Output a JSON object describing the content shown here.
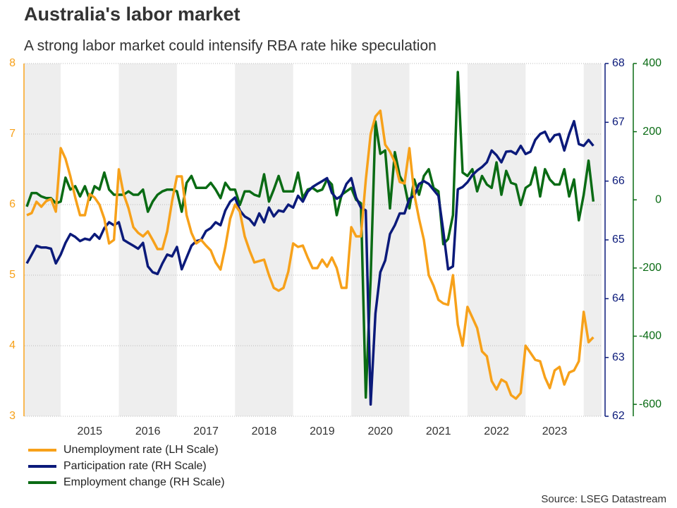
{
  "chart_data": {
    "type": "line",
    "title": "Australia's labor market",
    "subtitle": "A strong labor market could intensify RBA rate hike speculation",
    "source": "Source: LSEG Datastream",
    "categories": [
      null,
      null,
      null,
      null,
      null,
      null,
      null,
      null,
      null,
      null,
      null,
      null,
      null,
      "2015",
      null,
      null,
      null,
      null,
      null,
      null,
      null,
      null,
      null,
      null,
      null,
      "2016",
      null,
      null,
      null,
      null,
      null,
      null,
      null,
      null,
      null,
      null,
      null,
      "2017",
      null,
      null,
      null,
      null,
      null,
      null,
      null,
      null,
      null,
      null,
      null,
      "2018",
      null,
      null,
      null,
      null,
      null,
      null,
      null,
      null,
      null,
      null,
      null,
      "2019",
      null,
      null,
      null,
      null,
      null,
      null,
      null,
      null,
      null,
      null,
      null,
      "2020",
      null,
      null,
      null,
      null,
      null,
      null,
      null,
      null,
      null,
      null,
      null,
      "2021",
      null,
      null,
      null,
      null,
      null,
      null,
      null,
      null,
      null,
      null,
      null,
      "2022",
      null,
      null,
      null,
      null,
      null,
      null,
      null,
      null,
      null,
      null,
      null,
      "2023",
      null,
      null,
      null,
      null,
      null,
      null,
      null,
      null
    ],
    "ylim": [
      3,
      8
    ],
    "yticks": [
      3,
      4,
      5,
      6,
      7,
      8
    ],
    "y2lim": [
      62,
      68
    ],
    "y2ticks": [
      62,
      63,
      64,
      65,
      66,
      67,
      68
    ],
    "y3lim": [
      -635,
      400
    ],
    "y3ticks": [
      -600,
      -400,
      -200,
      0,
      200,
      400
    ],
    "grid": true,
    "legend": "bottom-left",
    "series": [
      {
        "name": "Unemployment rate (LH Scale)",
        "color": "#f7a11a",
        "axis": "y",
        "values": [
          5.85,
          5.88,
          6.04,
          5.97,
          6.05,
          6.08,
          5.9,
          6.8,
          6.65,
          6.4,
          6.1,
          5.85,
          5.85,
          6.15,
          6.1,
          6.0,
          5.8,
          5.45,
          5.5,
          6.5,
          6.15,
          5.95,
          5.68,
          5.6,
          5.55,
          5.62,
          5.5,
          5.37,
          5.37,
          5.62,
          6.05,
          6.4,
          6.4,
          5.85,
          5.6,
          5.45,
          5.5,
          5.42,
          5.35,
          5.18,
          5.08,
          5.4,
          5.8,
          6.0,
          5.9,
          5.55,
          5.35,
          5.18,
          5.2,
          5.22,
          5.0,
          4.82,
          4.78,
          4.82,
          5.05,
          5.45,
          5.4,
          5.42,
          5.25,
          5.1,
          5.1,
          5.22,
          5.12,
          5.25,
          5.1,
          4.82,
          4.82,
          5.68,
          5.55,
          5.55,
          6.35,
          7.0,
          7.25,
          7.33,
          6.85,
          6.75,
          6.6,
          6.32,
          6.3,
          6.8,
          6.15,
          5.8,
          5.5,
          5.0,
          4.85,
          4.65,
          4.6,
          4.58,
          5.0,
          4.3,
          4.0,
          4.55,
          4.4,
          4.25,
          3.92,
          3.85,
          3.5,
          3.38,
          3.52,
          3.48,
          3.3,
          3.25,
          3.33,
          4.0,
          3.9,
          3.8,
          3.78,
          3.55,
          3.4,
          3.65,
          3.7,
          3.45,
          3.62,
          3.65,
          3.78,
          4.48,
          4.05,
          4.12
        ]
      },
      {
        "name": "Participation rate (RH Scale)",
        "color": "#0b1a7a",
        "axis": "y2",
        "values": [
          64.6,
          64.75,
          64.9,
          64.87,
          64.87,
          64.85,
          64.6,
          64.75,
          64.95,
          65.1,
          65.05,
          64.98,
          65.02,
          65.0,
          65.1,
          65.02,
          65.2,
          65.3,
          65.25,
          65.3,
          65.0,
          64.95,
          64.9,
          64.85,
          64.95,
          64.55,
          64.45,
          64.42,
          64.6,
          64.75,
          64.72,
          64.88,
          64.5,
          64.7,
          64.9,
          64.98,
          65.0,
          65.15,
          65.2,
          65.3,
          65.25,
          65.5,
          65.65,
          65.72,
          65.5,
          65.4,
          65.35,
          65.25,
          65.45,
          65.3,
          65.55,
          65.4,
          65.5,
          65.48,
          65.6,
          65.55,
          65.75,
          65.65,
          65.82,
          65.9,
          65.95,
          66.0,
          66.05,
          65.8,
          65.7,
          65.75,
          65.95,
          66.05,
          65.72,
          65.55,
          65.5,
          62.2,
          63.75,
          64.45,
          64.65,
          65.1,
          65.25,
          65.45,
          65.45,
          65.7,
          65.75,
          65.95,
          66.0,
          65.95,
          65.85,
          65.75,
          65.15,
          64.5,
          64.55,
          65.86,
          65.9,
          65.98,
          66.1,
          66.18,
          66.24,
          66.32,
          66.52,
          66.44,
          66.32,
          66.5,
          66.51,
          66.46,
          66.6,
          66.46,
          66.5,
          66.7,
          66.8,
          66.84,
          66.67,
          66.78,
          66.8,
          66.52,
          66.8,
          67.02,
          66.63,
          66.6,
          66.7,
          66.6
        ]
      },
      {
        "name": "Employment change (RH Scale)",
        "color": "#0a6b14",
        "axis": "y3",
        "values": [
          -20,
          20,
          20,
          10,
          5,
          5,
          -10,
          -5,
          65,
          30,
          40,
          10,
          40,
          0,
          40,
          30,
          80,
          30,
          15,
          15,
          15,
          25,
          15,
          15,
          30,
          -35,
          -5,
          15,
          25,
          30,
          30,
          25,
          -35,
          50,
          70,
          35,
          35,
          35,
          50,
          30,
          5,
          50,
          30,
          30,
          -15,
          25,
          25,
          15,
          10,
          75,
          -5,
          30,
          70,
          25,
          25,
          25,
          80,
          5,
          30,
          35,
          25,
          30,
          60,
          45,
          -45,
          15,
          25,
          35,
          0,
          -10,
          -580,
          -230,
          230,
          135,
          145,
          -25,
          140,
          70,
          45,
          -25,
          60,
          15,
          70,
          90,
          35,
          25,
          -130,
          -115,
          -45,
          375,
          80,
          70,
          90,
          25,
          70,
          45,
          35,
          110,
          15,
          85,
          50,
          45,
          -15,
          35,
          45,
          95,
          10,
          90,
          60,
          45,
          45,
          90,
          10,
          60,
          -60,
          15,
          115,
          -5
        ]
      }
    ]
  }
}
